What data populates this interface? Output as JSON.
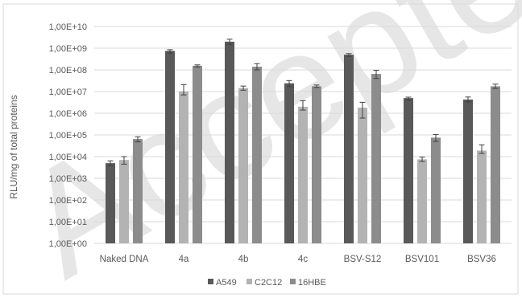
{
  "chart_data": {
    "type": "bar",
    "title": "",
    "xlabel": "",
    "ylabel": "RLU/mg of total proteins",
    "yscale": "log",
    "ylim": [
      1,
      10000000000
    ],
    "yticks": [
      "1,00E+00",
      "1,00E+01",
      "1,00E+02",
      "1,00E+03",
      "1,00E+04",
      "1,00E+05",
      "1,00E+06",
      "1,00E+07",
      "1,00E+08",
      "1,00E+09",
      "1,00E+10"
    ],
    "grid": true,
    "legend_position": "bottom",
    "watermark": "Accepted",
    "categories": [
      "Naked DNA",
      "4a",
      "4b",
      "4c",
      "BSV-S12",
      "BSV101",
      "BSV36"
    ],
    "series": [
      {
        "name": "A549",
        "color": "#595959",
        "values": [
          5000,
          750000000,
          2000000000,
          24000000,
          500000000,
          5000000,
          4300000
        ],
        "err_low": [
          3800,
          600000000,
          1500000000,
          17000000,
          420000000,
          4000000,
          3300000
        ],
        "err_high": [
          6400,
          850000000,
          2600000000,
          32000000,
          560000000,
          5500000,
          5600000
        ]
      },
      {
        "name": "C2C12",
        "color": "#b3b3b3",
        "values": [
          7000,
          10000000,
          14500000,
          2000000,
          1800000,
          7500,
          19000
        ],
        "err_low": [
          4500,
          7000000,
          11500000,
          1400000,
          600000,
          6000,
          14000
        ],
        "err_high": [
          10000,
          21000000,
          18000000,
          3800000,
          3200000,
          9500,
          35000
        ]
      },
      {
        "name": "16HBE",
        "color": "#8c8c8c",
        "values": [
          65000,
          155000000,
          140000000,
          17500000,
          65000000,
          75000,
          17500000
        ],
        "err_low": [
          48000,
          135000000,
          100000000,
          15500000,
          40000000,
          50000,
          14000000
        ],
        "err_high": [
          82000,
          170000000,
          195000000,
          20000000,
          95000000,
          105000,
          22000000
        ]
      }
    ]
  }
}
